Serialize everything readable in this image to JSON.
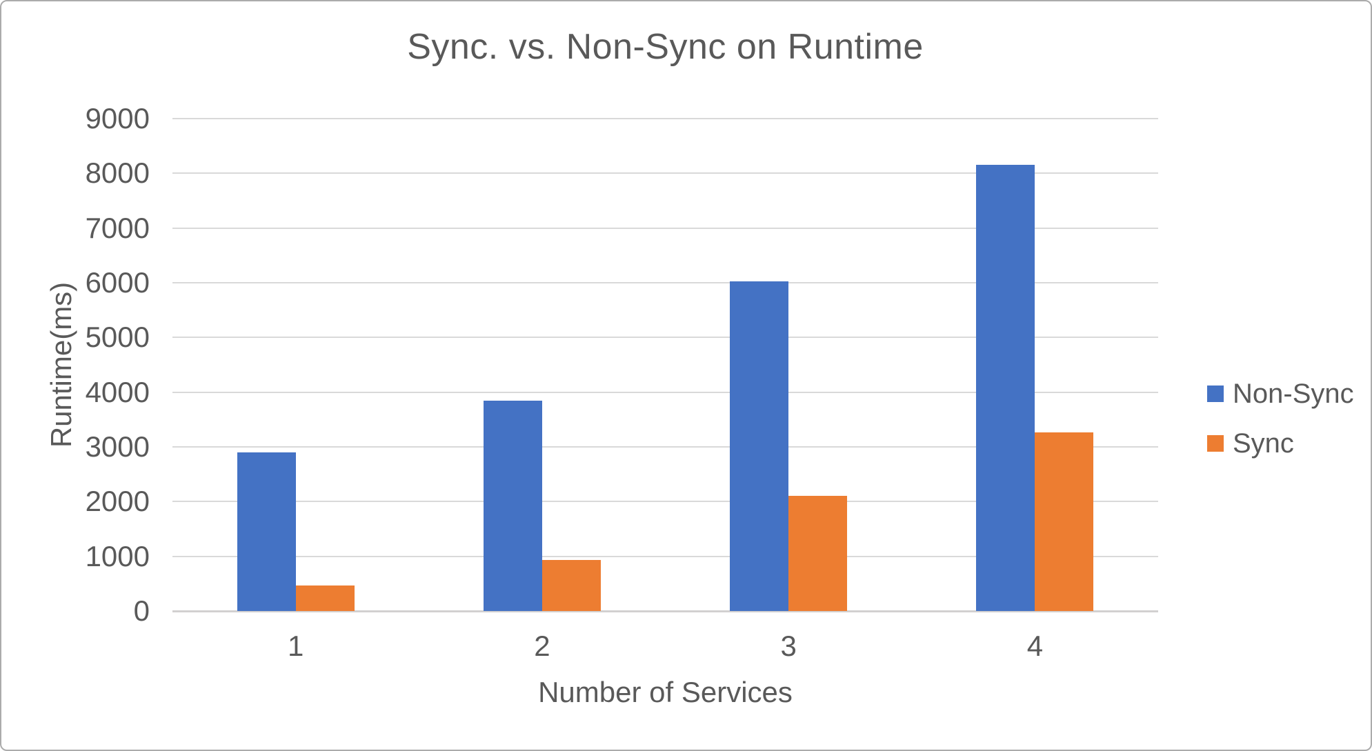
{
  "chart_data": {
    "type": "bar",
    "title": "Sync. vs. Non-Sync on Runtime",
    "xlabel": "Number of Services",
    "ylabel": "Runtime(ms)",
    "categories": [
      "1",
      "2",
      "3",
      "4"
    ],
    "series": [
      {
        "name": "Non-Sync",
        "color": "#4472C4",
        "values": [
          2900,
          3840,
          6030,
          8150
        ]
      },
      {
        "name": "Sync",
        "color": "#ED7D31",
        "values": [
          470,
          930,
          2110,
          3260
        ]
      }
    ],
    "ylim": [
      0,
      9000
    ],
    "ytick_step": 1000,
    "yticks": [
      "0",
      "1000",
      "2000",
      "3000",
      "4000",
      "5000",
      "6000",
      "7000",
      "8000",
      "9000"
    ],
    "grid": true,
    "legend_position": "right"
  },
  "colors": {
    "text": "#595959",
    "gridline": "#D9D9D9",
    "axis_line": "#D2D0D0",
    "background": "#FFFFFF",
    "frame_border": "#ABABAB"
  }
}
